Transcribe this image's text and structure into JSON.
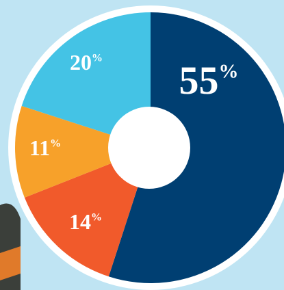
{
  "chart_data": {
    "type": "donut",
    "categories": [
      null,
      null,
      null,
      null
    ],
    "values": [
      55,
      14,
      11,
      20
    ],
    "value_labels": [
      "55%",
      "14%",
      "11%",
      "20%"
    ],
    "colors": [
      "#003f72",
      "#f15a2b",
      "#f7a12a",
      "#44c3e5"
    ]
  }
}
